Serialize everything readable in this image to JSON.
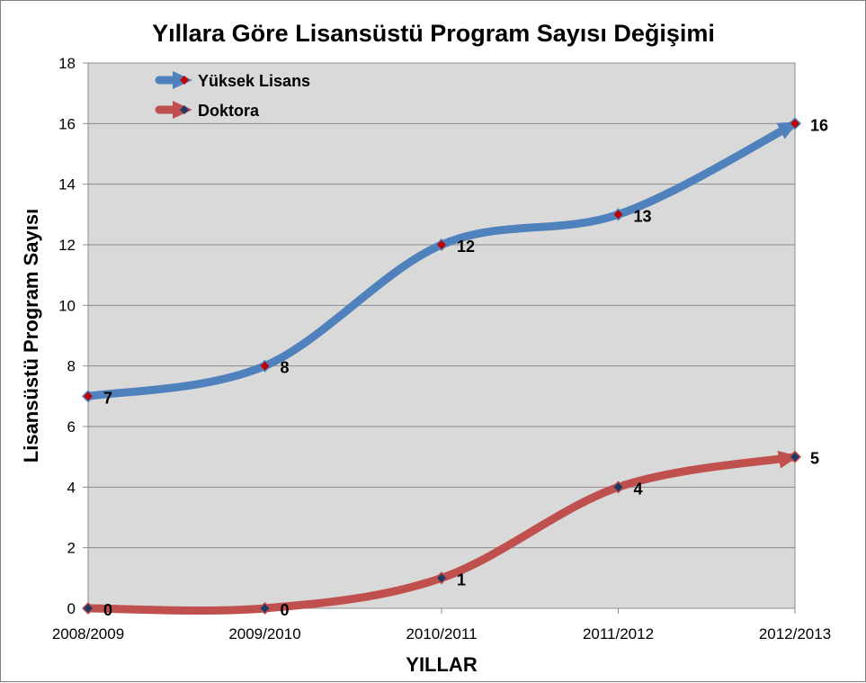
{
  "chart_data": {
    "type": "line",
    "title": "Yıllara Göre Lisansüstü Program Sayısı Değişimi",
    "xlabel": "YILLAR",
    "ylabel": "Lisansüstü Program Sayısı",
    "categories": [
      "2008/2009",
      "2009/2010",
      "2010/2011",
      "2011/2012",
      "2012/2013"
    ],
    "ylim": [
      0,
      18
    ],
    "yticks": [
      0,
      2,
      4,
      6,
      8,
      10,
      12,
      14,
      16,
      18
    ],
    "grid": true,
    "legend_position": "top-left",
    "series": [
      {
        "name": "Yüksek Lisans",
        "values": [
          7,
          8,
          12,
          13,
          16
        ],
        "color": "#4F81BD",
        "marker_color": "#C00000"
      },
      {
        "name": "Doktora",
        "values": [
          0,
          0,
          1,
          4,
          5
        ],
        "color": "#C0504D",
        "marker_color": "#1F3864"
      }
    ]
  }
}
